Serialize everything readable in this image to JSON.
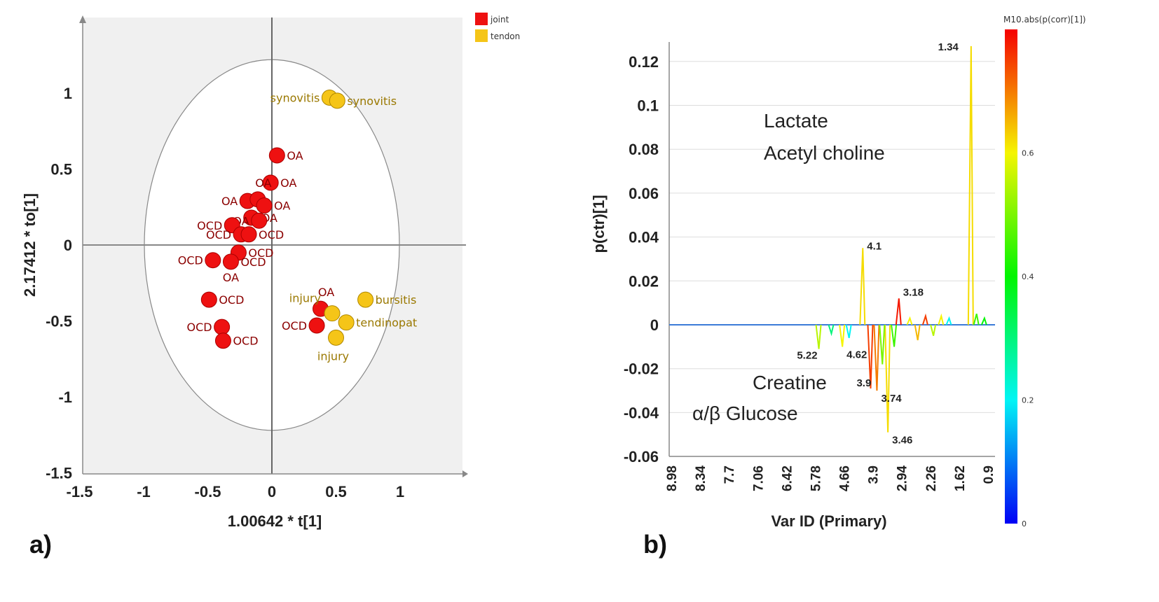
{
  "chart_data": [
    {
      "type": "scatter",
      "panel_label": "a)",
      "xlabel": "1.00642 * t[1]",
      "ylabel": "2.17412 * to[1]",
      "xlim": [
        -1.5,
        1.5
      ],
      "ylim": [
        -1.5,
        1.5
      ],
      "xticks": [
        "-1.5",
        "-1",
        "-0.5",
        "0",
        "0.5",
        "1"
      ],
      "xtick_values": [
        -1.5,
        -1,
        -0.5,
        0,
        0.5,
        1
      ],
      "yticks": [
        "1",
        "0.5",
        "0",
        "-0.5",
        "-1",
        "-1.5"
      ],
      "ytick_values": [
        1,
        0.5,
        0,
        -0.5,
        -1,
        -1.5
      ],
      "legend": [
        {
          "name": "joint",
          "color": "#ee1111"
        },
        {
          "name": "tendon",
          "color": "#f5c518"
        }
      ],
      "legend_position": "top-right",
      "series": [
        {
          "name": "joint",
          "color": "#ee1111",
          "label_color": "#8b0000",
          "points": [
            {
              "x": 0.04,
              "y": 0.59,
              "label": "OA",
              "side": "r"
            },
            {
              "x": -0.01,
              "y": 0.41,
              "label": "OA",
              "side": "r"
            },
            {
              "x": -0.19,
              "y": 0.29,
              "label": "OA",
              "side": "l"
            },
            {
              "x": -0.11,
              "y": 0.3,
              "label": "OA",
              "side": "t"
            },
            {
              "x": -0.06,
              "y": 0.26,
              "label": "OA",
              "side": "r"
            },
            {
              "x": -0.16,
              "y": 0.18,
              "label": "OA",
              "side": "r"
            },
            {
              "x": -0.1,
              "y": 0.16,
              "label": "OA",
              "side": "l"
            },
            {
              "x": -0.31,
              "y": 0.13,
              "label": "OCD",
              "side": "l"
            },
            {
              "x": -0.24,
              "y": 0.07,
              "label": "OCD",
              "side": "l"
            },
            {
              "x": -0.18,
              "y": 0.07,
              "label": "OCD",
              "side": "r"
            },
            {
              "x": -0.26,
              "y": -0.05,
              "label": "OCD",
              "side": "r"
            },
            {
              "x": -0.32,
              "y": -0.11,
              "label": "OCD",
              "side": "r"
            },
            {
              "x": -0.46,
              "y": -0.1,
              "label": "OCD",
              "side": "l"
            },
            {
              "x": -0.49,
              "y": -0.36,
              "label": "OCD",
              "side": "r"
            },
            {
              "x": -0.39,
              "y": -0.54,
              "label": "OCD",
              "side": "l"
            },
            {
              "x": -0.38,
              "y": -0.63,
              "label": "OCD",
              "side": "r"
            },
            {
              "x": 0.38,
              "y": -0.42,
              "label": "OA",
              "side": "t"
            },
            {
              "x": 0.35,
              "y": -0.53,
              "label": "OCD",
              "side": "l"
            }
          ]
        },
        {
          "name": "tendon",
          "color": "#f5c518",
          "label_color": "#9a7800",
          "points": [
            {
              "x": 0.45,
              "y": 0.97,
              "label": "synovitis",
              "side": "l"
            },
            {
              "x": 0.51,
              "y": 0.95,
              "label": "synovitis",
              "side": "r"
            },
            {
              "x": 0.73,
              "y": -0.36,
              "label": "bursitis",
              "side": "r"
            },
            {
              "x": 0.47,
              "y": -0.45,
              "label": "injury",
              "side": "tl"
            },
            {
              "x": 0.58,
              "y": -0.51,
              "label": "tendinopat",
              "side": "r"
            },
            {
              "x": 0.5,
              "y": -0.61,
              "label": "injury",
              "side": "b"
            }
          ]
        }
      ],
      "extra_labels": [
        "OA"
      ],
      "ellipse": {
        "rx": 1.0,
        "ry": 1.22
      }
    },
    {
      "type": "line",
      "panel_label": "b)",
      "xlabel": "Var ID (Primary)",
      "ylabel": "p(ctr)[1]",
      "xlim": [
        8.98,
        0.9
      ],
      "ylim": [
        -0.06,
        0.13
      ],
      "xticks": [
        "8.98",
        "8.34",
        "7.7",
        "7.06",
        "6.42",
        "5.78",
        "4.66",
        "3.9",
        "2.94",
        "2.26",
        "1.62",
        "0.9"
      ],
      "yticks": [
        "0.12",
        "0.1",
        "0.08",
        "0.06",
        "0.04",
        "0.02",
        "0",
        "-0.02",
        "-0.04",
        "-0.06"
      ],
      "ytick_values": [
        0.12,
        0.1,
        0.08,
        0.06,
        0.04,
        0.02,
        0,
        -0.02,
        -0.04,
        -0.06
      ],
      "grid": true,
      "colorbar": {
        "title": "M10.abs(p(corr)[1])",
        "ticks": [
          "0.6",
          "0.4",
          "0.2",
          "0"
        ],
        "tick_values": [
          0.6,
          0.4,
          0.2,
          0
        ],
        "range": [
          0,
          0.8
        ]
      },
      "peaks": [
        {
          "ppm": 5.22,
          "value": -0.011,
          "corr": 0.55,
          "label": "5.22"
        },
        {
          "ppm": 4.62,
          "value": -0.01,
          "corr": 0.6,
          "label": "4.62"
        },
        {
          "ppm": 4.1,
          "value": 0.035,
          "corr": 0.62,
          "label": "4.1"
        },
        {
          "ppm": 3.9,
          "value": -0.029,
          "corr": 0.75,
          "label": "3.9"
        },
        {
          "ppm": 3.74,
          "value": -0.03,
          "corr": 0.7,
          "label": "3.74"
        },
        {
          "ppm": 3.46,
          "value": -0.049,
          "corr": 0.62,
          "label": "3.46"
        },
        {
          "ppm": 3.18,
          "value": 0.012,
          "corr": 0.78,
          "label": "3.18"
        },
        {
          "ppm": 1.34,
          "value": 0.127,
          "corr": 0.62,
          "label": "1.34"
        }
      ],
      "minor_peaks": [
        [
          4.9,
          -0.004,
          0.3
        ],
        [
          4.45,
          -0.006,
          0.2
        ],
        [
          3.6,
          -0.018,
          0.5
        ],
        [
          3.3,
          -0.01,
          0.45
        ],
        [
          2.9,
          0.003,
          0.6
        ],
        [
          2.7,
          -0.007,
          0.65
        ],
        [
          2.5,
          0.004,
          0.75
        ],
        [
          2.3,
          -0.005,
          0.55
        ],
        [
          2.1,
          0.004,
          0.6
        ],
        [
          1.9,
          0.003,
          0.2
        ],
        [
          1.2,
          0.005,
          0.45
        ],
        [
          1.0,
          0.003,
          0.4
        ]
      ],
      "annotations": [
        "Lactate",
        "Acetyl choline",
        "Creatine",
        "α/β Glucose"
      ]
    }
  ]
}
